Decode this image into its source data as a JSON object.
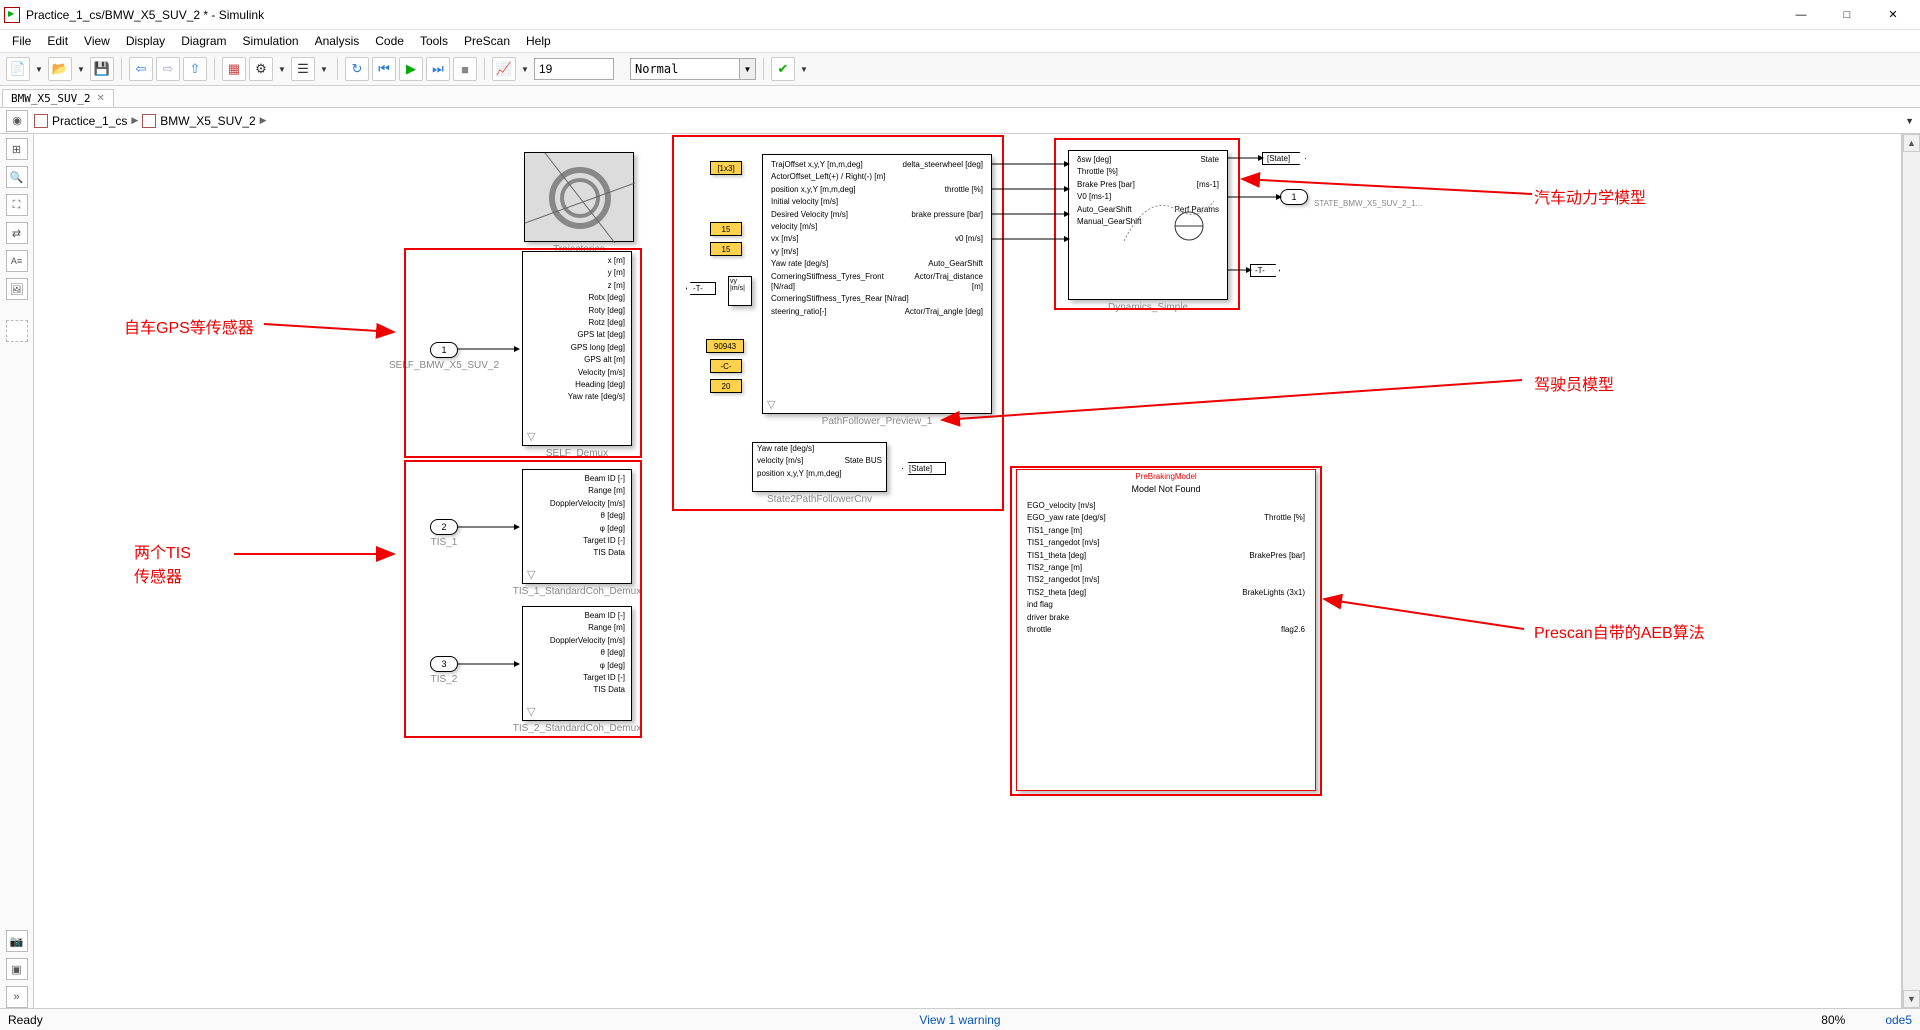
{
  "title": "Practice_1_cs/BMW_X5_SUV_2 * - Simulink",
  "menus": [
    "File",
    "Edit",
    "View",
    "Display",
    "Diagram",
    "Simulation",
    "Analysis",
    "Code",
    "Tools",
    "PreScan",
    "Help"
  ],
  "toolbar": {
    "stoptime": "19",
    "mode": "Normal"
  },
  "tab": "BMW_X5_SUV_2",
  "breadcrumb": {
    "a": "Practice_1_cs",
    "b": "BMW_X5_SUV_2"
  },
  "traject_label": "Trajectories",
  "self_demux": {
    "label": "SELF_Demux",
    "ports": [
      "x [m]",
      "y [m]",
      "z [m]",
      "Rotx [deg]",
      "Roty [deg]",
      "Rotz [deg]",
      "GPS lat [deg]",
      "GPS long [deg]",
      "GPS alt [m]",
      "Velocity [m/s]",
      "Heading [deg]",
      "Yaw rate [deg/s]"
    ]
  },
  "inport1": {
    "num": "1",
    "label": "SELF_BMW_X5_SUV_2"
  },
  "tis1": {
    "label": "TIS_1_StandardCoh_Demux",
    "inport": "2",
    "inlabel": "TIS_1",
    "ports": [
      "Beam ID [-]",
      "Range [m]",
      "DopplerVelocity [m/s]",
      "θ [deg]",
      "φ [deg]",
      "Target ID [-]",
      "TIS Data"
    ]
  },
  "tis2": {
    "label": "TIS_2_StandardCoh_Demux",
    "inport": "3",
    "inlabel": "TIS_2",
    "ports": [
      "Beam ID [-]",
      "Range [m]",
      "DopplerVelocity [m/s]",
      "θ [deg]",
      "φ [deg]",
      "Target ID [-]",
      "TIS Data"
    ]
  },
  "consts": {
    "c1": "[1x3]",
    "c2": "15",
    "c3": "15",
    "c4": "90943",
    "c5": "-C-",
    "c6": "20"
  },
  "pathfollower": {
    "label": "PathFollower_Preview_1",
    "left": [
      "TrajOffset x,y,Y [m,m,deg]",
      "ActorOffset_Left(+) / Right(-) [m]",
      "position x,y,Y [m,m,deg]",
      "Initial velocity [m/s]",
      "Desired Velocity [m/s]",
      "velocity [m/s]",
      "vx [m/s]",
      "vy [m/s]",
      "Yaw rate [deg/s]",
      "CorneringStiffness_Tyres_Front [N/rad]",
      "CorneringStiffness_Tyres_Rear [N/rad]",
      "steering_ratio[-]"
    ],
    "right": [
      "delta_steerwheel [deg]",
      "",
      "throttle [%]",
      "",
      "brake pressure [bar]",
      "",
      "v0 [m/s]",
      "",
      "Auto_GearShift",
      "Actor/Traj_distance [m]",
      "",
      "Actor/Traj_angle [deg]"
    ]
  },
  "state2pf": {
    "label": "State2PathFollowerCnv",
    "left": [
      "Yaw rate [deg/s]",
      "velocity [m/s]",
      "position x,y,Y [m,m,deg]"
    ],
    "right": "State BUS"
  },
  "dynamics": {
    "label": "Dynamics_Simple",
    "left": [
      "δsw [deg]",
      "Throttle [%]",
      "Brake Pres [bar]",
      "V0 [ms-1]",
      "Auto_GearShift",
      "Manual_GearShift"
    ],
    "right": [
      "State",
      "",
      "[ms-1]",
      "",
      "Perf Params"
    ]
  },
  "outport": {
    "num": "1",
    "label": "STATE_BMW_X5_SUV_2_1..."
  },
  "goto_state": "[State]",
  "from_state": "[State]",
  "goto_t": "-T-",
  "from_t": "-T-",
  "prebrake": {
    "title": "PreBrakingModel",
    "notfound": "Model Not Found",
    "left": [
      "EGO_velocity [m/s]",
      "EGO_yaw rate [deg/s]",
      "TIS1_range [m]",
      "TIS1_rangedot [m/s]",
      "TIS1_theta [deg]",
      "TIS2_range [m]",
      "TIS2_rangedot [m/s]",
      "TIS2_theta [deg]",
      "ind flag",
      "driver brake",
      "throttle"
    ],
    "right": [
      "",
      "Throttle [%]",
      "",
      "",
      "BrakePres [bar]",
      "",
      "",
      "BrakeLights (3x1)",
      "",
      "",
      "flag2.6"
    ]
  },
  "annotations": {
    "a1": "自车GPS等传感器",
    "a2": "两个TIS\n传感器",
    "a3": "汽车动力学模型",
    "a4": "驾驶员模型",
    "a5": "Prescan自带的AEB算法"
  },
  "status": {
    "ready": "Ready",
    "warn": "View 1 warning",
    "zoom": "80%",
    "solver": "ode5"
  },
  "colors": {
    "red": "#e00000",
    "warn": "#0654ba"
  }
}
